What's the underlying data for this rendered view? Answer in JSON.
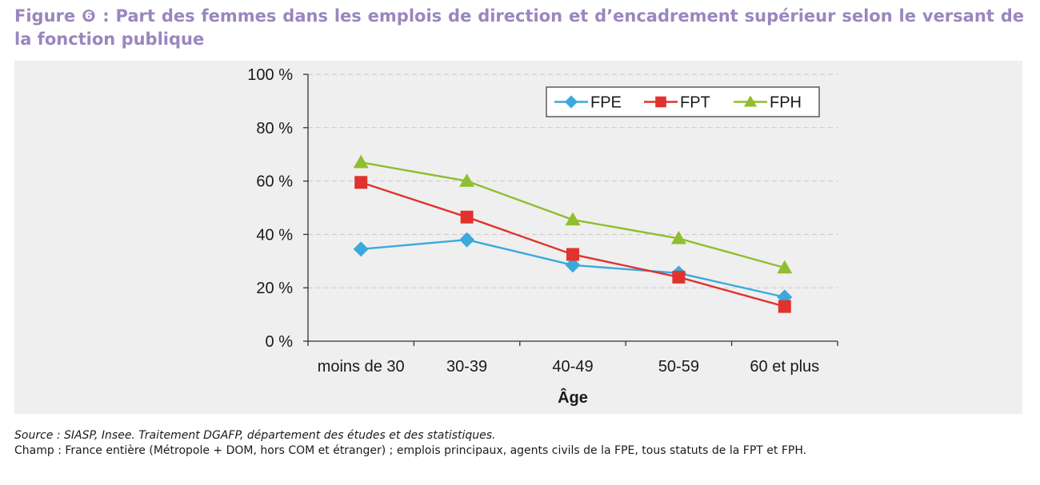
{
  "figure": {
    "title": "Figure ❻ : Part des femmes dans les emplois de direction et d’encadrement supérieur selon le versant de la fonction  publique"
  },
  "notes": {
    "source": "Source : SIASP, Insee. Traitement DGAFP, département des études et des statistiques.",
    "champ": "Champ : France entière (Métropole + DOM, hors COM et étranger) ; emplois principaux, agents civils de la FPE, tous statuts de la FPT et FPH."
  },
  "chart_data": {
    "type": "line",
    "title": "",
    "xlabel": "Âge",
    "ylabel": "",
    "categories": [
      "moins de 30",
      "30-39",
      "40-49",
      "50-59",
      "60 et plus"
    ],
    "ylim": [
      0,
      100
    ],
    "yticks": [
      0,
      20,
      40,
      60,
      80,
      100
    ],
    "ytick_labels": [
      "0 %",
      "20 %",
      "40 %",
      "60 %",
      "80 %",
      "100 %"
    ],
    "grid": true,
    "legend_position": "top-right",
    "series": [
      {
        "name": "FPE",
        "color": "#3aa9dd",
        "marker": "diamond",
        "values": [
          34.5,
          38,
          28.5,
          25.5,
          16.5
        ]
      },
      {
        "name": "FPT",
        "color": "#e0332e",
        "marker": "square",
        "values": [
          59.5,
          46.5,
          32.5,
          24,
          13
        ]
      },
      {
        "name": "FPH",
        "color": "#8fbe2e",
        "marker": "triangle",
        "values": [
          67,
          60,
          45.5,
          38.5,
          27.5
        ]
      }
    ]
  }
}
